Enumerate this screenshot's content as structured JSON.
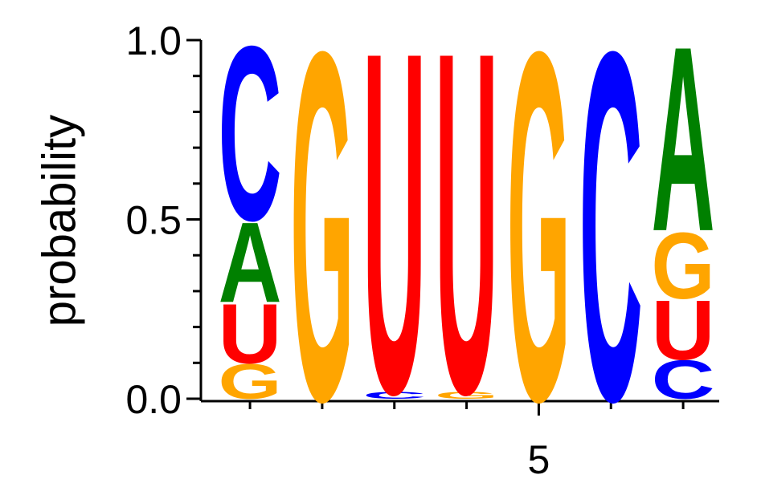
{
  "chart_data": {
    "type": "logo",
    "y_label": "probability",
    "positions": [
      1,
      2,
      3,
      4,
      5,
      6,
      7
    ],
    "series": [
      {
        "name": "A",
        "color": "#008000",
        "values": [
          0.23,
          0,
          0,
          0,
          0,
          0,
          0.53
        ]
      },
      {
        "name": "C",
        "color": "#0000ff",
        "values": [
          0.5,
          0,
          0.02,
          0,
          0,
          1.0,
          0.11
        ]
      },
      {
        "name": "G",
        "color": "#ffa500",
        "values": [
          0.1,
          1.0,
          0,
          0.02,
          1.0,
          0,
          0.19
        ]
      },
      {
        "name": "U",
        "color": "#ff0000",
        "values": [
          0.17,
          0,
          0.98,
          0.98,
          0,
          0,
          0.17
        ]
      }
    ],
    "xlim": [
      0.32,
      7.5
    ],
    "xticks": [
      5
    ],
    "xminor_ticks": [
      1,
      2,
      3,
      4,
      6,
      7
    ],
    "ylim": [
      0,
      1.0
    ],
    "yticks": [
      {
        "value": 0,
        "label": "0.0"
      },
      0.5,
      {
        "value": 1,
        "label": "1.0"
      }
    ],
    "yminor_ticks": [
      0.1,
      0.2,
      0.3,
      0.4,
      0.6,
      0.7,
      0.8,
      0.9
    ]
  }
}
